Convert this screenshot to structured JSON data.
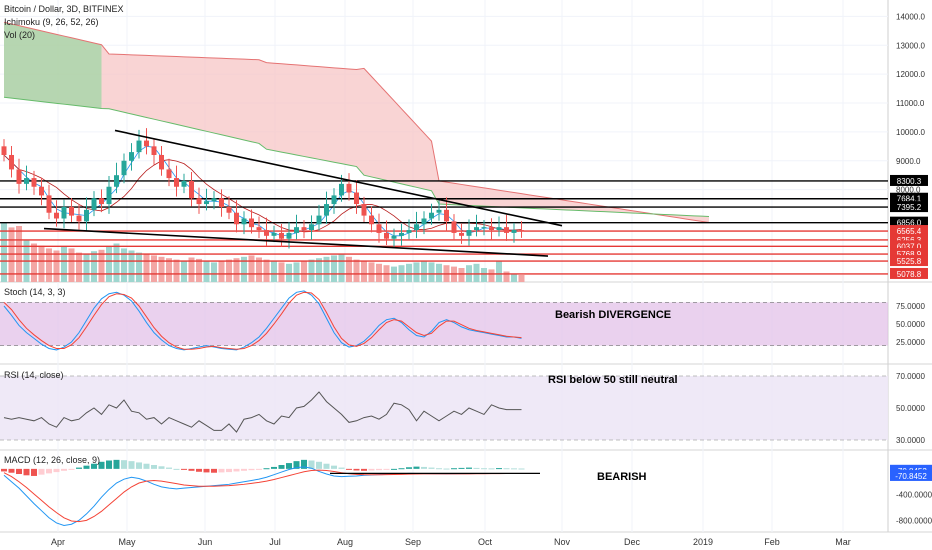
{
  "header": {
    "symbol": "Bitcoin / Dollar, 3D, BITFINEX",
    "ichimoku": "Ichimoku (9, 26, 52, 26)",
    "vol": "Vol (20)"
  },
  "months": [
    "Apr",
    "May",
    "Jun",
    "Jul",
    "Aug",
    "Sep",
    "Oct",
    "Nov",
    "Dec",
    "2019",
    "Feb",
    "Mar"
  ],
  "colors": {
    "bull": "#26a69a",
    "bear": "#ef5350",
    "cloud_bear": "#f7c6c5",
    "cloud_bull": "#a5d6a7",
    "level_black": "#000000",
    "level_red": "#e53935",
    "stoch_band": "#e1bee7",
    "rsi_band": "#ede7f6",
    "stoch_k": "#2196f3",
    "stoch_d": "#f44336",
    "macd": "#2196f3",
    "signal": "#f44336"
  },
  "chart_data": [
    {
      "type": "candlestick",
      "title": "Bitcoin / Dollar, 3D, BITFINEX",
      "y_ticks": [
        14000,
        13000,
        12000,
        11000,
        10000,
        9000,
        8000
      ],
      "ylim": [
        4800,
        14500
      ],
      "levels_black": [
        8300.3,
        7684.1,
        7395.2,
        6856.0
      ],
      "levels_black_labels": [
        "8300.3",
        "7684.1",
        "7395.2",
        "6856.0"
      ],
      "levels_red": [
        6565.4,
        6256.3,
        6037.0,
        5768.9,
        5525.8,
        5078.8
      ],
      "levels_red_labels": [
        "6565.4",
        "6256.3",
        "6037.0",
        "5768.9",
        "5525.8",
        "5078.8"
      ],
      "candles_x_start": "Mar",
      "candles_interval_days": 3,
      "closes": [
        9200,
        8700,
        8200,
        8400,
        8100,
        7800,
        7200,
        7000,
        7400,
        7100,
        6900,
        7300,
        7700,
        7500,
        8100,
        8500,
        9000,
        9300,
        9700,
        9500,
        9200,
        8700,
        8400,
        8100,
        8300,
        7700,
        7500,
        7600,
        7700,
        7400,
        7200,
        6800,
        7000,
        6700,
        6600,
        6400,
        6500,
        6300,
        6500,
        6700,
        6600,
        6800,
        7100,
        7500,
        7800,
        8200,
        7900,
        7500,
        7100,
        6800,
        6500,
        6300,
        6400,
        6500,
        6600,
        6800,
        7000,
        7200,
        7300,
        6900,
        6500,
        6400,
        6600,
        6700,
        6700,
        6600,
        6700,
        6500,
        6600,
        6550
      ],
      "volumes": [
        85,
        78,
        80,
        60,
        55,
        52,
        48,
        45,
        50,
        48,
        42,
        40,
        44,
        46,
        50,
        55,
        48,
        45,
        42,
        40,
        38,
        36,
        34,
        32,
        30,
        35,
        33,
        30,
        28,
        30,
        32,
        34,
        36,
        38,
        35,
        32,
        30,
        28,
        26,
        28,
        30,
        32,
        34,
        36,
        38,
        40,
        36,
        32,
        30,
        28,
        26,
        24,
        22,
        24,
        26,
        28,
        30,
        28,
        26,
        24,
        22,
        20,
        24,
        26,
        20,
        18,
        30,
        15,
        12,
        10
      ]
    },
    {
      "type": "line",
      "title": "Stoch (14, 3, 3)",
      "y_ticks": [
        75,
        50,
        25
      ],
      "y_tick_labels": [
        "75.0000",
        "50.0000",
        "25.0000"
      ],
      "ylim": [
        0,
        100
      ],
      "bands": [
        20,
        80
      ],
      "series": [
        {
          "values": [
            75,
            62,
            48,
            38,
            30,
            22,
            16,
            14,
            18,
            25,
            38,
            55,
            72,
            85,
            92,
            94,
            90,
            82,
            68,
            52,
            38,
            28,
            20,
            16,
            14,
            16,
            18,
            20,
            18,
            16,
            15,
            14,
            18,
            24,
            32,
            44,
            58,
            72,
            86,
            94,
            96,
            90,
            78,
            58,
            38,
            24,
            18,
            20,
            26,
            36,
            48,
            56,
            58,
            52,
            42,
            34,
            32,
            40,
            52,
            56,
            52,
            46,
            42,
            40,
            38,
            36,
            34,
            32,
            32,
            30
          ]
        },
        {
          "values": [
            80,
            70,
            56,
            44,
            35,
            27,
            20,
            16,
            16,
            21,
            31,
            46,
            62,
            77,
            88,
            92,
            91,
            86,
            75,
            60,
            45,
            33,
            24,
            18,
            15,
            15,
            16,
            18,
            19,
            17,
            16,
            15,
            16,
            20,
            27,
            37,
            50,
            64,
            79,
            90,
            94,
            93,
            84,
            66,
            46,
            30,
            21,
            19,
            23,
            31,
            42,
            52,
            56,
            54,
            46,
            38,
            34,
            37,
            47,
            54,
            54,
            49,
            44,
            41,
            39,
            37,
            35,
            33,
            32,
            31
          ]
        }
      ]
    },
    {
      "type": "line",
      "title": "RSI (14, close)",
      "y_ticks": [
        70,
        50,
        30
      ],
      "y_tick_labels": [
        "70.0000",
        "50.0000",
        "30.0000"
      ],
      "ylim": [
        25,
        75
      ],
      "bands": [
        30,
        70
      ],
      "series": [
        {
          "values": [
            44,
            43,
            44,
            43,
            42,
            44,
            40,
            38,
            44,
            42,
            43,
            47,
            50,
            46,
            52,
            50,
            55,
            48,
            47,
            43,
            44,
            40,
            44,
            42,
            40,
            38,
            42,
            39,
            36,
            36,
            40,
            35,
            43,
            44,
            46,
            42,
            40,
            45,
            44,
            50,
            51,
            55,
            60,
            54,
            50,
            46,
            41,
            42,
            44,
            45,
            43,
            46,
            53,
            52,
            49,
            42,
            48,
            45,
            42,
            45,
            48,
            46,
            50,
            48,
            46,
            52,
            50,
            49,
            49,
            49
          ]
        }
      ]
    },
    {
      "type": "bar",
      "title": "MACD (12, 26, close, 9)",
      "y_ticks": [
        -400,
        -800
      ],
      "y_tick_labels": [
        "-400.0000",
        "-800.0000"
      ],
      "ylim": [
        -950,
        200
      ],
      "markers": [
        "-70.8452",
        "-70.8452"
      ],
      "histogram": [
        -40,
        -60,
        -80,
        -100,
        -110,
        -90,
        -70,
        -50,
        -30,
        -10,
        20,
        50,
        80,
        110,
        130,
        140,
        135,
        120,
        100,
        80,
        60,
        40,
        20,
        0,
        -15,
        -30,
        -45,
        -55,
        -60,
        -55,
        -50,
        -40,
        -30,
        -20,
        -10,
        10,
        30,
        60,
        90,
        120,
        140,
        130,
        110,
        80,
        50,
        20,
        -10,
        -25,
        -30,
        -25,
        -20,
        -10,
        0,
        10,
        25,
        35,
        30,
        20,
        10,
        5,
        10,
        15,
        20,
        15,
        10,
        8,
        12,
        10,
        8,
        6
      ],
      "series": [
        {
          "values": [
            -100,
            -200,
            -300,
            -420,
            -540,
            -650,
            -760,
            -840,
            -880,
            -860,
            -800,
            -700,
            -580,
            -440,
            -320,
            -220,
            -160,
            -130,
            -150,
            -190,
            -240,
            -280,
            -300,
            -310,
            -300,
            -290,
            -280,
            -270,
            -260,
            -250,
            -240,
            -220,
            -200,
            -180,
            -160,
            -130,
            -90,
            -50,
            -10,
            20,
            30,
            10,
            -40,
            -80,
            -110,
            -120,
            -115,
            -110,
            -100,
            -95,
            -90,
            -85,
            -80,
            -75,
            -70,
            -72,
            -74,
            -76,
            -78,
            -80,
            -78,
            -76,
            -74,
            -72,
            -72,
            -71,
            -71,
            -71,
            -71,
            -71
          ]
        },
        {
          "values": [
            -60,
            -120,
            -200,
            -290,
            -390,
            -490,
            -590,
            -680,
            -760,
            -810,
            -820,
            -800,
            -740,
            -660,
            -560,
            -460,
            -360,
            -280,
            -220,
            -190,
            -180,
            -190,
            -210,
            -230,
            -250,
            -260,
            -270,
            -270,
            -270,
            -265,
            -260,
            -250,
            -240,
            -225,
            -210,
            -190,
            -165,
            -135,
            -105,
            -75,
            -45,
            -25,
            -20,
            -25,
            -40,
            -60,
            -75,
            -85,
            -90,
            -92,
            -92,
            -90,
            -88,
            -85,
            -82,
            -80,
            -78,
            -78,
            -78,
            -78,
            -78,
            -78,
            -77,
            -76,
            -75,
            -74,
            -73,
            -72,
            -71,
            -71
          ]
        }
      ]
    }
  ],
  "annotations": {
    "stoch": "Bearish DIVERGENCE",
    "rsi": "RSI below 50 still neutral",
    "macd": "BEARISH"
  }
}
